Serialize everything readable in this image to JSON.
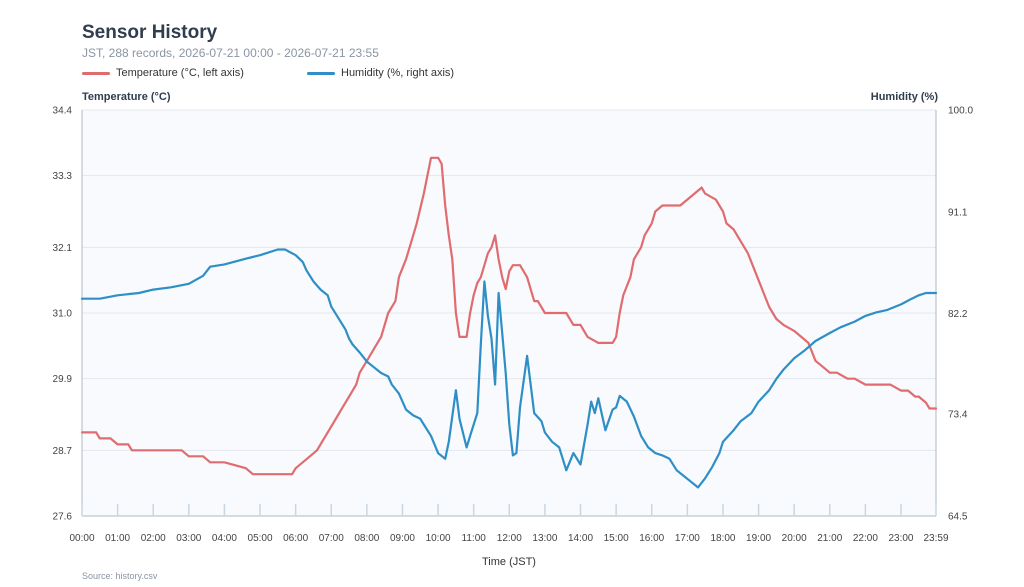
{
  "chart_data": {
    "type": "line",
    "title": "Sensor History",
    "subtitle": "JST, 288 records, 2026-07-21 00:00 - 2026-07-21 23:55",
    "xlabel": "Time (JST)",
    "ylabel_left": "Temperature (°C)",
    "ylabel_right": "Humidity (%)",
    "ylim_left": [
      27.6,
      34.4
    ],
    "ylim_right": [
      64.5,
      100.0
    ],
    "yticks_left": [
      "27.6",
      "28.7",
      "29.9",
      "31.0",
      "32.1",
      "33.3",
      "34.4"
    ],
    "yticks_right": [
      "64.5",
      "73.4",
      "82.2",
      "91.1",
      "100.0"
    ],
    "xlim": [
      0,
      23.983
    ],
    "x_tick_labels": [
      "00:00",
      "01:00",
      "02:00",
      "03:00",
      "04:00",
      "05:00",
      "06:00",
      "07:00",
      "08:00",
      "09:00",
      "10:00",
      "11:00",
      "12:00",
      "13:00",
      "14:00",
      "15:00",
      "16:00",
      "17:00",
      "18:00",
      "19:00",
      "20:00",
      "21:00",
      "22:00",
      "23:00",
      "23:59"
    ],
    "grid": true,
    "legend_position": "top-left",
    "series": [
      {
        "name": "Temperature (°C, left axis)",
        "axis": "left",
        "color": "#e06c6f",
        "x": [
          0,
          0.4,
          0.5,
          0.8,
          1.0,
          1.3,
          1.4,
          2.8,
          3.0,
          3.4,
          3.6,
          4.0,
          4.6,
          4.8,
          5.6,
          5.9,
          6.0,
          6.2,
          6.4,
          6.6,
          6.8,
          6.9,
          7.0,
          7.2,
          7.3,
          7.5,
          7.7,
          7.8,
          8.0,
          8.2,
          8.4,
          8.6,
          8.8,
          8.9,
          9.1,
          9.3,
          9.4,
          9.6,
          9.7,
          9.8,
          9.9,
          10.0,
          10.1,
          10.2,
          10.3,
          10.4,
          10.5,
          10.6,
          10.8,
          10.9,
          11.0,
          11.1,
          11.2,
          11.3,
          11.4,
          11.5,
          11.6,
          11.7,
          11.8,
          11.9,
          12.0,
          12.1,
          12.3,
          12.5,
          12.7,
          12.8,
          13.0,
          13.2,
          13.6,
          13.8,
          14.0,
          14.2,
          14.5,
          14.7,
          14.9,
          15.0,
          15.1,
          15.2,
          15.4,
          15.5,
          15.7,
          15.8,
          16.0,
          16.1,
          16.3,
          16.6,
          16.8,
          17.0,
          17.4,
          17.5,
          17.8,
          18.0,
          18.1,
          18.3,
          18.5,
          18.7,
          18.9,
          19.1,
          19.3,
          19.5,
          19.7,
          20.0,
          20.2,
          20.4,
          20.6,
          20.8,
          21.0,
          21.2,
          21.5,
          21.7,
          22.0,
          22.4,
          22.7,
          23.0,
          23.2,
          23.4,
          23.5,
          23.7,
          23.8,
          23.983
        ],
        "values": [
          29.0,
          29.0,
          28.9,
          28.9,
          28.8,
          28.8,
          28.7,
          28.7,
          28.6,
          28.6,
          28.5,
          28.5,
          28.4,
          28.3,
          28.3,
          28.3,
          28.4,
          28.5,
          28.6,
          28.7,
          28.9,
          29.0,
          29.1,
          29.3,
          29.4,
          29.6,
          29.8,
          30.0,
          30.2,
          30.4,
          30.6,
          31.0,
          31.2,
          31.6,
          31.9,
          32.3,
          32.5,
          33.0,
          33.3,
          33.6,
          33.6,
          33.6,
          33.5,
          32.8,
          32.3,
          31.9,
          31.0,
          30.6,
          30.6,
          31.0,
          31.3,
          31.5,
          31.6,
          31.8,
          32.0,
          32.1,
          32.3,
          31.9,
          31.6,
          31.4,
          31.7,
          31.8,
          31.8,
          31.6,
          31.2,
          31.2,
          31.0,
          31.0,
          31.0,
          30.8,
          30.8,
          30.6,
          30.5,
          30.5,
          30.5,
          30.6,
          31.0,
          31.3,
          31.6,
          31.9,
          32.1,
          32.3,
          32.5,
          32.7,
          32.8,
          32.8,
          32.8,
          32.9,
          33.1,
          33.0,
          32.9,
          32.7,
          32.5,
          32.4,
          32.2,
          32.0,
          31.7,
          31.4,
          31.1,
          30.9,
          30.8,
          30.7,
          30.6,
          30.5,
          30.2,
          30.1,
          30.0,
          30.0,
          29.9,
          29.9,
          29.8,
          29.8,
          29.8,
          29.7,
          29.7,
          29.6,
          29.6,
          29.5,
          29.4,
          29.4
        ]
      },
      {
        "name": "Humidity (%, right axis)",
        "axis": "right",
        "color": "#2e8fc6",
        "x": [
          0,
          0.5,
          1.0,
          1.6,
          2.0,
          2.5,
          3.0,
          3.4,
          3.6,
          4.0,
          4.6,
          5.0,
          5.5,
          5.7,
          6.0,
          6.2,
          6.3,
          6.5,
          6.7,
          6.9,
          7.0,
          7.2,
          7.4,
          7.5,
          7.6,
          7.8,
          8.0,
          8.2,
          8.4,
          8.6,
          8.7,
          8.9,
          9.0,
          9.1,
          9.3,
          9.5,
          9.6,
          9.8,
          10.0,
          10.2,
          10.3,
          10.5,
          10.6,
          10.8,
          10.9,
          11.0,
          11.1,
          11.2,
          11.3,
          11.4,
          11.5,
          11.6,
          11.7,
          11.8,
          11.9,
          12.0,
          12.1,
          12.2,
          12.3,
          12.5,
          12.7,
          12.9,
          13.0,
          13.2,
          13.4,
          13.6,
          13.8,
          14.0,
          14.2,
          14.3,
          14.4,
          14.5,
          14.7,
          14.9,
          15.0,
          15.1,
          15.3,
          15.5,
          15.7,
          15.9,
          16.1,
          16.3,
          16.5,
          16.7,
          16.9,
          17.1,
          17.3,
          17.5,
          17.7,
          17.9,
          18.0,
          18.3,
          18.5,
          18.8,
          19.0,
          19.3,
          19.5,
          19.7,
          20.0,
          20.3,
          20.6,
          21.0,
          21.3,
          21.7,
          22.0,
          22.3,
          22.6,
          23.0,
          23.3,
          23.5,
          23.7,
          23.983
        ],
        "values": [
          83.5,
          83.5,
          83.8,
          84.0,
          84.3,
          84.5,
          84.8,
          85.5,
          86.3,
          86.5,
          87.0,
          87.3,
          87.8,
          87.8,
          87.3,
          86.7,
          86.0,
          85.0,
          84.3,
          83.8,
          82.8,
          81.8,
          80.8,
          80.0,
          79.5,
          78.8,
          78.0,
          77.5,
          77.0,
          76.7,
          76.0,
          75.2,
          74.5,
          73.8,
          73.3,
          73.0,
          72.5,
          71.5,
          70.0,
          69.5,
          71.0,
          75.5,
          73.0,
          70.5,
          71.5,
          72.5,
          73.5,
          79.5,
          85.0,
          82.0,
          80.0,
          76.0,
          84.0,
          80.5,
          77.0,
          72.5,
          69.8,
          70.0,
          74.0,
          78.5,
          73.5,
          72.8,
          71.8,
          71.0,
          70.5,
          68.5,
          70.0,
          69.0,
          72.5,
          74.5,
          73.5,
          74.8,
          72.0,
          73.8,
          74.0,
          75.0,
          74.5,
          73.2,
          71.5,
          70.5,
          70.0,
          69.8,
          69.5,
          68.5,
          68.0,
          67.5,
          67.0,
          67.8,
          68.8,
          70.0,
          71.0,
          72.0,
          72.8,
          73.5,
          74.5,
          75.5,
          76.5,
          77.3,
          78.3,
          79.0,
          79.8,
          80.5,
          81.0,
          81.5,
          82.0,
          82.3,
          82.5,
          83.0,
          83.5,
          83.8,
          84.0,
          84.0
        ]
      }
    ]
  },
  "footer": {
    "source": "Source: history.csv"
  },
  "colors": {
    "plot_background": "#f8fafd",
    "grid": "#e3e8ee",
    "axis": "#b0b8c2"
  }
}
